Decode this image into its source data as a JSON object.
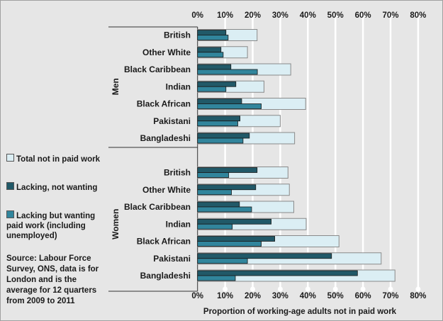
{
  "chart_data": {
    "type": "bar",
    "orientation": "horizontal",
    "xlabel": "Proportion of working-age adults not in paid work",
    "xlim": [
      0,
      80
    ],
    "x_ticks": [
      "0%",
      "10%",
      "20%",
      "30%",
      "40%",
      "50%",
      "60%",
      "70%",
      "80%"
    ],
    "grid": true,
    "legend_position": "left",
    "groups": [
      {
        "name": "Men",
        "categories": [
          "British",
          "Other White",
          "Black Caribbean",
          "Indian",
          "Black African",
          "Pakistani",
          "Bangladeshi"
        ]
      },
      {
        "name": "Women",
        "categories": [
          "British",
          "Other White",
          "Black Caribbean",
          "Indian",
          "Black African",
          "Pakistani",
          "Bangladeshi"
        ]
      }
    ],
    "series": [
      {
        "name": "Total not in paid work",
        "color": "#dbeef4",
        "values": {
          "Men": [
            21.6,
            18.1,
            33.8,
            24.1,
            39.2,
            30.0,
            35.2
          ],
          "Women": [
            32.8,
            33.3,
            34.9,
            39.4,
            51.3,
            66.6,
            71.6
          ]
        }
      },
      {
        "name": "Lacking, not wanting",
        "color": "#215968",
        "values": {
          "Men": [
            10.3,
            8.5,
            12.1,
            13.9,
            16.0,
            15.4,
            18.8
          ],
          "Women": [
            21.6,
            21.1,
            15.2,
            26.7,
            28.0,
            48.6,
            58.0
          ]
        }
      },
      {
        "name": "Lacking but wanting paid work (including unemployed)",
        "color": "#31859c",
        "values": {
          "Men": [
            11.1,
            9.3,
            21.7,
            10.3,
            23.1,
            14.6,
            16.5
          ],
          "Women": [
            11.3,
            12.3,
            19.6,
            12.6,
            23.1,
            18.1,
            13.7
          ]
        }
      }
    ],
    "source": "Source: Labour Force Survey, ONS, data is for London and is the average for 12 quarters from 2009 to 2011"
  }
}
